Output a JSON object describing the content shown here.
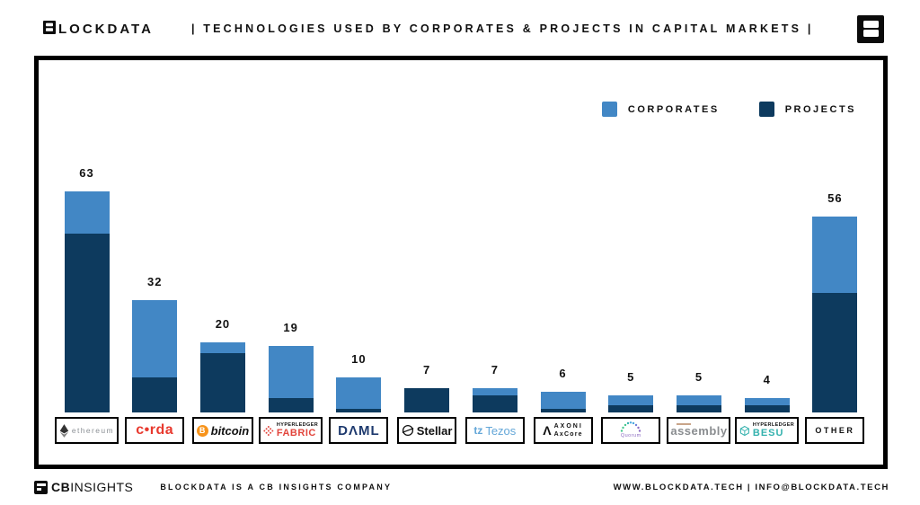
{
  "header": {
    "brand": "BLOCKDATA",
    "brand_rest": "LOCKDATA",
    "title": "| TECHNOLOGIES USED BY CORPORATES & PROJECTS IN CAPITAL MARKETS |"
  },
  "chart_data": {
    "type": "bar",
    "stacked": true,
    "title": "TECHNOLOGIES USED BY CORPORATES & PROJECTS IN CAPITAL MARKETS",
    "legend_position": "top-right",
    "value_labels": "totals shown above each bar",
    "categories": [
      "Ethereum",
      "Corda",
      "Bitcoin",
      "Hyperledger Fabric",
      "DAML",
      "Stellar",
      "Tezos",
      "Axoni AxCore",
      "Quorum",
      "Assembly",
      "Hyperledger Besu",
      "Other"
    ],
    "totals": [
      63,
      32,
      20,
      19,
      10,
      7,
      7,
      6,
      5,
      5,
      4,
      56
    ],
    "series": [
      {
        "name": "CORPORATES",
        "color": "#4287c5",
        "values": [
          12,
          22,
          3,
          15,
          9,
          0,
          2,
          5,
          3,
          3,
          2,
          22
        ]
      },
      {
        "name": "PROJECTS",
        "color": "#0d3a5e",
        "values": [
          51,
          10,
          17,
          4,
          1,
          7,
          5,
          1,
          2,
          2,
          2,
          34
        ]
      }
    ],
    "ylim": [
      0,
      65
    ],
    "grid": false
  },
  "logos": [
    {
      "id": "ethereum",
      "icon": "ethereum-diamond-icon",
      "text": "ethereum",
      "text_color": "#8c9196"
    },
    {
      "id": "corda",
      "text": "c•rda",
      "color": "#e8392e"
    },
    {
      "id": "bitcoin",
      "icon": "bitcoin-coin-icon",
      "symbol": "B",
      "text": "bitcoin",
      "icon_color": "#f7931a",
      "text_color": "#111111"
    },
    {
      "id": "hyperledger-fabric",
      "icon": "fabric-lattice-icon",
      "top": "HYPERLEDGER",
      "bottom": "FABRIC",
      "top_color": "#111111",
      "bottom_color": "#e2453c"
    },
    {
      "id": "daml",
      "text": "DΛML",
      "color": "#1e3a6e"
    },
    {
      "id": "stellar",
      "icon": "stellar-rocket-icon",
      "text": "Stellar",
      "color": "#111111"
    },
    {
      "id": "tezos",
      "symbol": "tz",
      "text": "Tezos",
      "color": "#64a7d8"
    },
    {
      "id": "axoni",
      "symbol": "Λ",
      "top": "AXONI",
      "bottom": "AxCore",
      "color": "#111111"
    },
    {
      "id": "quorum",
      "icon": "quorum-arc-icon",
      "text": "Quorum",
      "color": "#8d6cc3"
    },
    {
      "id": "assembly",
      "text": "assembly",
      "color": "#8a8d90"
    },
    {
      "id": "hyperledger-besu",
      "icon": "besu-cube-icon",
      "top": "HYPERLEDGER",
      "bottom": "BESU",
      "top_color": "#111111",
      "bottom_color": "#35b2ae"
    },
    {
      "id": "other",
      "text": "OTHER",
      "color": "#111111"
    }
  ],
  "footer": {
    "cb_bold": "CB",
    "cb_thin": "INSIGHTS",
    "tagline": "BLOCKDATA IS A CB INSIGHTS COMPANY",
    "contact": "WWW.BLOCKDATA.TECH | INFO@BLOCKDATA.TECH"
  }
}
